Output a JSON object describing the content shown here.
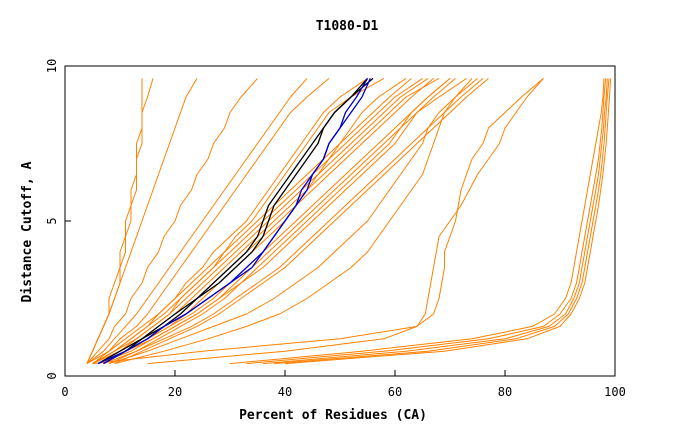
{
  "chart_data": {
    "type": "line",
    "title": "T1080-D1",
    "xlabel": "Percent of Residues (CA)",
    "ylabel": "Distance Cutoff, A",
    "xlim": [
      0,
      100
    ],
    "ylim": [
      0,
      10
    ],
    "x_ticks": [
      "0",
      "20",
      "40",
      "60",
      "80",
      "100"
    ],
    "y_ticks": [
      "0",
      "5",
      "10"
    ],
    "grid": false,
    "legend": "none",
    "colors": {
      "models": "#ff8000",
      "highlight_black": "#000000",
      "highlight_blue": "#0000cc"
    },
    "y_levels": [
      0.4,
      0.8,
      1.2,
      1.6,
      2.0,
      2.5,
      3.0,
      3.5,
      4.0,
      4.5,
      5.0,
      5.5,
      6.0,
      6.5,
      7.0,
      7.5,
      8.0,
      8.5,
      9.0,
      9.6
    ],
    "series": [
      {
        "role": "model",
        "x": [
          5,
          9,
          12,
          15,
          17,
          20,
          22,
          25,
          27,
          30,
          33,
          35,
          37,
          39,
          41,
          43,
          45,
          47,
          50,
          55
        ]
      },
      {
        "role": "model",
        "x": [
          6,
          10,
          13,
          16,
          19,
          21,
          24,
          27,
          29,
          31,
          34,
          36,
          38,
          40,
          42,
          44,
          46,
          48,
          52,
          58
        ]
      },
      {
        "role": "model",
        "x": [
          4,
          8,
          10,
          13,
          15,
          17,
          19,
          21,
          23,
          25,
          27,
          29,
          31,
          33,
          35,
          37,
          39,
          41,
          44,
          48
        ]
      },
      {
        "role": "model",
        "x": [
          7,
          11,
          15,
          19,
          22,
          25,
          28,
          31,
          34,
          37,
          40,
          42,
          44,
          46,
          48,
          50,
          52,
          54,
          57,
          62
        ]
      },
      {
        "role": "model",
        "x": [
          8,
          13,
          17,
          21,
          25,
          29,
          32,
          35,
          38,
          41,
          44,
          47,
          50,
          53,
          56,
          59,
          61,
          63,
          66,
          70
        ]
      },
      {
        "role": "model",
        "x": [
          9,
          14,
          19,
          24,
          28,
          32,
          36,
          40,
          43,
          46,
          49,
          52,
          55,
          58,
          61,
          64,
          67,
          70,
          73,
          77
        ]
      },
      {
        "role": "model",
        "x": [
          6,
          12,
          16,
          20,
          24,
          28,
          31,
          34,
          37,
          40,
          43,
          46,
          49,
          52,
          55,
          58,
          61,
          64,
          68,
          73
        ]
      },
      {
        "role": "model",
        "x": [
          5,
          9,
          12,
          15,
          18,
          21,
          24,
          27,
          30,
          33,
          36,
          39,
          42,
          45,
          48,
          51,
          54,
          57,
          60,
          65
        ]
      },
      {
        "role": "model",
        "x": [
          4,
          7,
          9,
          11,
          13,
          15,
          17,
          19,
          21,
          23,
          25,
          27,
          29,
          31,
          33,
          35,
          37,
          39,
          41,
          44
        ]
      },
      {
        "role": "model",
        "x": [
          4,
          6,
          8,
          9,
          11,
          12,
          14,
          15,
          17,
          18,
          20,
          21,
          23,
          24,
          26,
          27,
          29,
          30,
          32,
          35
        ]
      },
      {
        "role": "model",
        "x": [
          4,
          5,
          6,
          7,
          8,
          9,
          10,
          11,
          12,
          13,
          14,
          15,
          16,
          17,
          18,
          19,
          20,
          21,
          22,
          24
        ]
      },
      {
        "role": "model",
        "x": [
          4,
          5,
          6,
          7,
          8,
          9,
          10,
          10,
          11,
          11,
          12,
          12,
          13,
          13,
          13,
          14,
          14,
          14,
          15,
          16
        ]
      },
      {
        "role": "model",
        "x": [
          4,
          5,
          6,
          7,
          8,
          8,
          9,
          10,
          10,
          11,
          11,
          12,
          12,
          13,
          13,
          13,
          14,
          14,
          14,
          14
        ]
      },
      {
        "role": "model",
        "x": [
          5,
          8,
          11,
          14,
          17,
          20,
          23,
          26,
          29,
          32,
          35,
          38,
          41,
          44,
          47,
          50,
          53,
          56,
          59,
          63
        ]
      },
      {
        "role": "model",
        "x": [
          7,
          13,
          18,
          23,
          27,
          31,
          35,
          39,
          42,
          45,
          48,
          51,
          54,
          57,
          60,
          63,
          66,
          69,
          72,
          76
        ]
      },
      {
        "role": "model",
        "x": [
          6,
          11,
          15,
          19,
          23,
          27,
          30,
          33,
          36,
          39,
          42,
          45,
          48,
          51,
          54,
          57,
          60,
          63,
          66,
          70
        ]
      },
      {
        "role": "model",
        "x": [
          5,
          10,
          14,
          18,
          21,
          24,
          27,
          30,
          33,
          36,
          39,
          42,
          45,
          48,
          51,
          54,
          57,
          60,
          63,
          67
        ]
      },
      {
        "role": "model",
        "x": [
          5,
          9,
          13,
          16,
          19,
          22,
          25,
          28,
          31,
          34,
          37,
          40,
          43,
          46,
          49,
          52,
          55,
          58,
          61,
          66
        ]
      },
      {
        "role": "model",
        "x": [
          6,
          10,
          14,
          17,
          20,
          23,
          26,
          29,
          32,
          35,
          38,
          41,
          44,
          47,
          50,
          53,
          56,
          59,
          62,
          68
        ]
      },
      {
        "role": "model",
        "x": [
          8,
          15,
          21,
          27,
          33,
          38,
          42,
          46,
          49,
          52,
          55,
          57,
          59,
          61,
          63,
          65,
          66,
          68,
          71,
          75
        ]
      },
      {
        "role": "model",
        "x": [
          6,
          11,
          16,
          20,
          24,
          28,
          32,
          36,
          39,
          42,
          45,
          48,
          51,
          54,
          57,
          60,
          62,
          64,
          67,
          71
        ]
      },
      {
        "role": "model",
        "x": [
          9,
          18,
          26,
          33,
          39,
          44,
          48,
          52,
          55,
          57,
          59,
          61,
          63,
          65,
          66,
          67,
          68,
          69,
          71,
          74
        ]
      },
      {
        "role": "model",
        "x": [
          30,
          54,
          74,
          85,
          89,
          91,
          92,
          92.5,
          93,
          93.5,
          94,
          94.5,
          95,
          95.5,
          96,
          96.5,
          97,
          97.5,
          97.8,
          98
        ]
      },
      {
        "role": "model",
        "x": [
          33,
          58,
          77,
          87,
          90,
          92,
          93,
          93.5,
          94,
          94.5,
          95,
          95.5,
          96,
          96.5,
          97,
          97.3,
          97.6,
          97.8,
          98,
          98.3
        ]
      },
      {
        "role": "model",
        "x": [
          36,
          62,
          80,
          88,
          91,
          92.5,
          93.5,
          94,
          94.5,
          95,
          95.5,
          96,
          96.5,
          97,
          97.3,
          97.6,
          97.9,
          98.1,
          98.4,
          98.6
        ]
      },
      {
        "role": "model",
        "x": [
          38,
          66,
          82,
          89,
          91.5,
          93,
          94,
          94.5,
          95,
          95.5,
          96,
          96.5,
          97,
          97.4,
          97.7,
          98,
          98.2,
          98.4,
          98.6,
          98.9
        ]
      },
      {
        "role": "model",
        "x": [
          40,
          69,
          84,
          90,
          92,
          93.5,
          94.5,
          95,
          95.5,
          96,
          96.5,
          97,
          97.4,
          97.8,
          98.1,
          98.4,
          98.6,
          98.8,
          99,
          99.2
        ]
      },
      {
        "role": "model",
        "x": [
          5,
          25,
          50,
          64,
          67,
          68,
          68.5,
          69,
          69,
          70,
          71,
          71.5,
          72,
          73,
          74,
          76,
          77,
          80,
          83,
          87
        ]
      },
      {
        "role": "model",
        "x": [
          15,
          40,
          58,
          64,
          65.5,
          66,
          66.5,
          67,
          67.5,
          68,
          70,
          72,
          73.5,
          75,
          77,
          79,
          80,
          82,
          84,
          87
        ]
      },
      {
        "role": "highlight_black",
        "x": [
          7,
          11,
          14,
          17,
          20,
          24,
          28,
          31,
          34,
          36,
          37,
          38,
          40,
          42,
          44,
          46,
          47,
          49,
          52,
          56
        ]
      },
      {
        "role": "highlight_black",
        "x": [
          6,
          10,
          14,
          18,
          21,
          24,
          27,
          30,
          33,
          35,
          36,
          37,
          39,
          41,
          43,
          45,
          47,
          49,
          52,
          55
        ]
      },
      {
        "role": "highlight_blue",
        "x": [
          7,
          11,
          15,
          18,
          22,
          26,
          30,
          34,
          36,
          38,
          40,
          42,
          44,
          45,
          47,
          48,
          50,
          52,
          54,
          55.5
        ]
      },
      {
        "role": "highlight_blue",
        "x": [
          6,
          11,
          15,
          18,
          22,
          26,
          30,
          33,
          36,
          38,
          40,
          42,
          43,
          45,
          47,
          48,
          50,
          51,
          53,
          55
        ]
      }
    ]
  }
}
